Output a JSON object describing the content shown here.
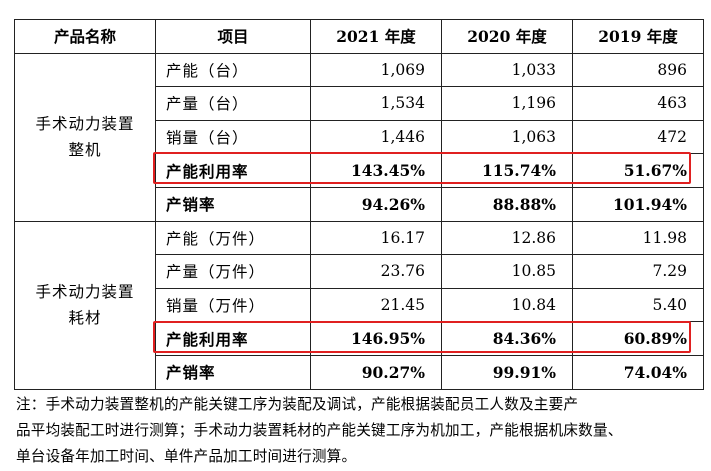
{
  "table": {
    "headers": [
      "产品名称",
      "项目",
      "2021 年度",
      "2020 年度",
      "2019 年度"
    ],
    "groups": [
      {
        "product_lines": [
          "手术动力装置",
          "整机"
        ],
        "rows": [
          {
            "item": "产能（台）",
            "values": [
              "1,069",
              "1,033",
              "896"
            ]
          },
          {
            "item": "产量（台）",
            "values": [
              "1,534",
              "1,196",
              "463"
            ]
          },
          {
            "item": "销量（台）",
            "values": [
              "1,446",
              "1,063",
              "472"
            ]
          },
          {
            "item": "产能利用率",
            "values": [
              "143.45%",
              "115.74%",
              "51.67%"
            ]
          },
          {
            "item": "产销率",
            "values": [
              "94.26%",
              "88.88%",
              "101.94%"
            ]
          }
        ]
      },
      {
        "product_lines": [
          "手术动力装置",
          "耗材"
        ],
        "rows": [
          {
            "item": "产能（万件）",
            "values": [
              "16.17",
              "12.86",
              "11.98"
            ]
          },
          {
            "item": "产量（万件）",
            "values": [
              "23.76",
              "10.85",
              "7.29"
            ]
          },
          {
            "item": "销量（万件）",
            "values": [
              "21.45",
              "10.84",
              "5.40"
            ]
          },
          {
            "item": "产能利用率",
            "values": [
              "146.95%",
              "84.36%",
              "60.89%"
            ]
          },
          {
            "item": "产销率",
            "values": [
              "90.27%",
              "99.91%",
              "74.04%"
            ]
          }
        ]
      }
    ]
  },
  "note": {
    "lines": [
      "注：手术动力装置整机的产能关键工序为装配及调试，产能根据装配员工人数及主要产",
      "品平均装配工时进行测算；手术动力装置耗材的产能关键工序为机加工，产能根据机床数量、",
      "单台设备年加工时间、单件产品加工时间进行测算。"
    ]
  },
  "highlight_color": "#e02020"
}
